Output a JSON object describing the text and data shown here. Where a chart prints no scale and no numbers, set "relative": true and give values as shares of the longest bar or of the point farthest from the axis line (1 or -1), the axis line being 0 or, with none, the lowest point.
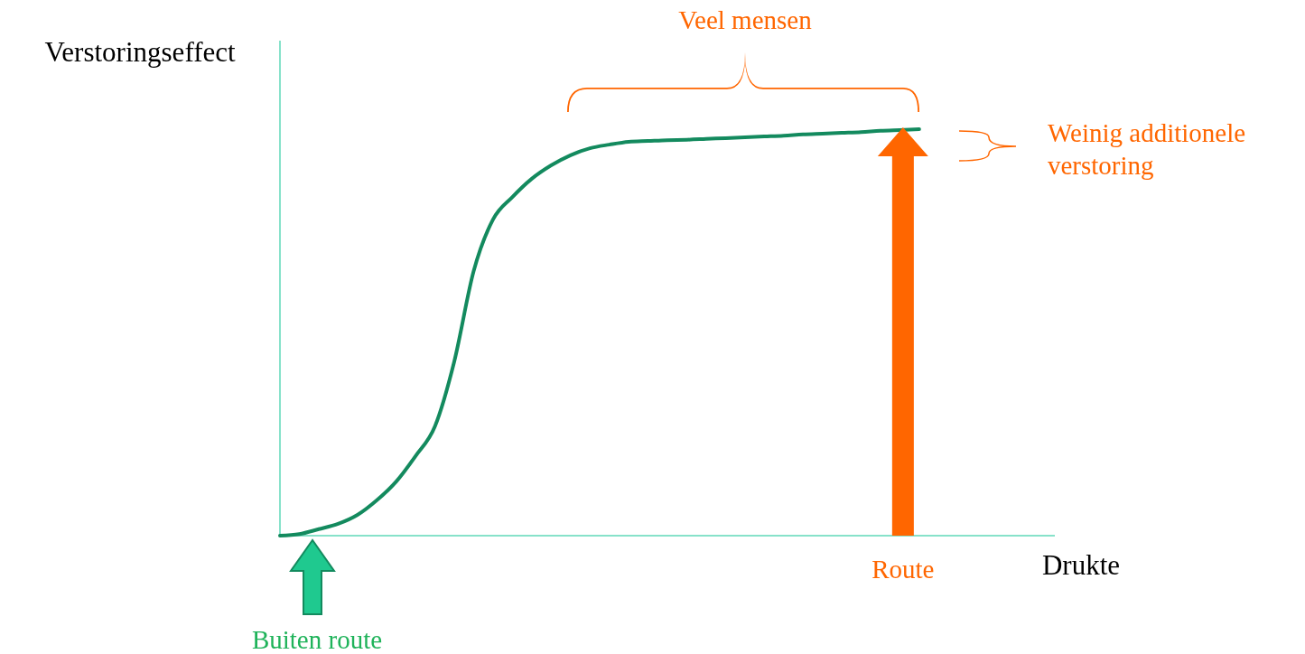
{
  "chart_data": {
    "type": "line",
    "relative": true,
    "xlabel": "Drukte",
    "ylabel": "Verstoringseffect",
    "categories": [
      null,
      null,
      null,
      null,
      null,
      null,
      null,
      null,
      null,
      null,
      null,
      null,
      null,
      null,
      null,
      null,
      null,
      null,
      null,
      null,
      null,
      null,
      null,
      null,
      null,
      null,
      null,
      null,
      null,
      null,
      null,
      null,
      null,
      null,
      null,
      null,
      null,
      null,
      null,
      null,
      null
    ],
    "series": [
      {
        "color": "#138a5e",
        "values": [
          0,
          0.004,
          0.016,
          0.029,
          0.051,
          0.087,
          0.133,
          0.196,
          0.269,
          0.429,
          0.651,
          0.778,
          0.833,
          0.878,
          0.911,
          0.936,
          0.953,
          0.962,
          0.969,
          0.971,
          0.973,
          0.974,
          0.976,
          0.978,
          0.98,
          0.982,
          0.984,
          0.987,
          0.989,
          0.991,
          0.993,
          0.996,
          0.998,
          1,
          null,
          null,
          null,
          null,
          null,
          null,
          null
        ]
      }
    ],
    "annotations": [
      "Veel mensen",
      "Weinig additionele verstoring",
      "Route",
      "Buiten route"
    ],
    "marker": "none",
    "line_style": "solid"
  }
}
